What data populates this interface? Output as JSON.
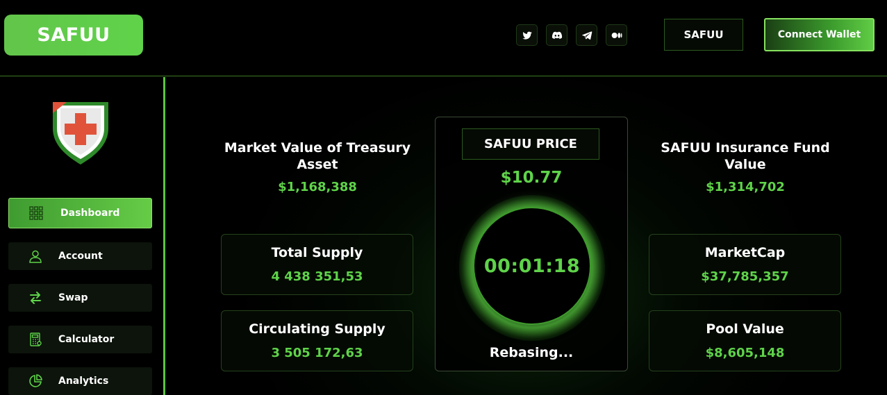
{
  "header": {
    "brand": "SAFUU",
    "social_icons": [
      "twitter-icon",
      "discord-icon",
      "telegram-icon",
      "medium-icon"
    ],
    "token_label": "SAFUU",
    "connect_label": "Connect Wallet"
  },
  "sidebar": {
    "logo_icon": "shield-cross-icon",
    "items": [
      {
        "label": "Dashboard",
        "icon": "grid-icon",
        "active": true
      },
      {
        "label": "Account",
        "icon": "user-icon",
        "active": false
      },
      {
        "label": "Swap",
        "icon": "swap-arrows-icon",
        "active": false
      },
      {
        "label": "Calculator",
        "icon": "calculator-icon",
        "active": false
      },
      {
        "label": "Analytics",
        "icon": "pie-chart-icon",
        "active": false
      }
    ]
  },
  "dashboard": {
    "treasury": {
      "title": "Market Value of Treasury Asset",
      "value": "$1,168,388"
    },
    "insurance": {
      "title": "SAFUU Insurance Fund Value",
      "value": "$1,314,702"
    },
    "total_supply": {
      "title": "Total Supply",
      "value": "4 438 351,53"
    },
    "circulating_supply": {
      "title": "Circulating Supply",
      "value": "3 505 172,63"
    },
    "market_cap": {
      "title": "MarketCap",
      "value": "$37,785,357"
    },
    "pool_value": {
      "title": "Pool Value",
      "value": "$8,605,148"
    },
    "price": {
      "label": "SAFUU PRICE",
      "value": "$10.77"
    },
    "countdown": "00:01:18",
    "status": "Rebasing..."
  },
  "colors": {
    "accent": "#5fd34a",
    "background": "#000000",
    "sidebar_border": "#5fc43e"
  }
}
